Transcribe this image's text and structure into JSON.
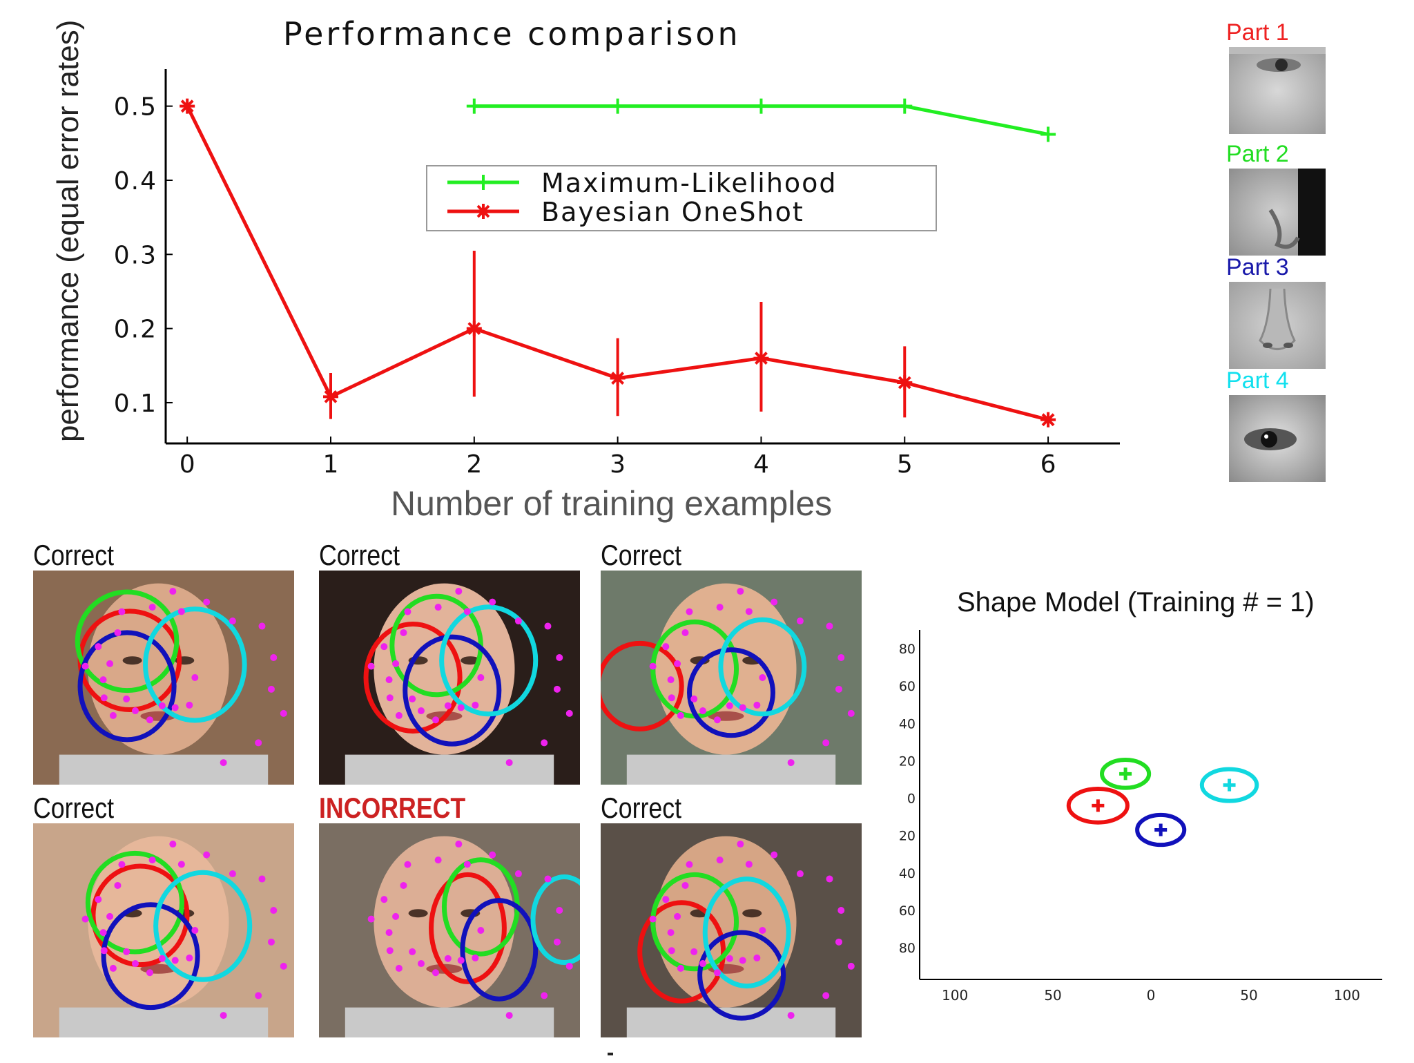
{
  "chart_data": [
    {
      "type": "line",
      "title": "Performance comparison",
      "xlabel": "Number of training examples",
      "ylabel": "performance (equal error rates)",
      "x_ticks": [
        "0",
        "1",
        "2",
        "3",
        "4",
        "5",
        "6"
      ],
      "y_ticks": [
        "0.1",
        "0.2",
        "0.3",
        "0.4",
        "0.5"
      ],
      "xlim": [
        -0.15,
        6.5
      ],
      "ylim": [
        0.045,
        0.55
      ],
      "legend_position": "center",
      "series": [
        {
          "name": "Maximum-Likelihood",
          "color": "#22ee22",
          "marker": "plus",
          "x": [
            2,
            3,
            4,
            5,
            6
          ],
          "values": [
            0.5,
            0.5,
            0.5,
            0.5,
            0.462
          ]
        },
        {
          "name": "Bayesian OneShot",
          "color": "#ee1111",
          "marker": "star",
          "x": [
            0,
            1,
            2,
            3,
            4,
            5,
            6
          ],
          "values": [
            0.5,
            0.108,
            0.2,
            0.133,
            0.16,
            0.127,
            0.077
          ],
          "error_low": [
            0.5,
            0.078,
            0.108,
            0.082,
            0.088,
            0.08,
            0.077
          ],
          "error_high": [
            0.5,
            0.14,
            0.305,
            0.187,
            0.236,
            0.176,
            0.077
          ]
        }
      ]
    },
    {
      "type": "scatter",
      "title": "Shape Model (Training # = 1)",
      "x_ticks": [
        "100",
        "50",
        "0",
        "50",
        "100"
      ],
      "x_tick_values": [
        -100,
        -50,
        0,
        50,
        100
      ],
      "y_ticks": [
        "80",
        "60",
        "40",
        "20",
        "0",
        "20",
        "40",
        "60",
        "80"
      ],
      "y_tick_values": [
        80,
        60,
        40,
        20,
        0,
        -20,
        -40,
        -60,
        -80
      ],
      "xlim": [
        -118,
        118
      ],
      "ylim": [
        -97,
        90
      ],
      "points": [
        {
          "name": "Part 1",
          "color": "#ee1111",
          "x": -27,
          "y": -4,
          "rx": 15,
          "ry": 9
        },
        {
          "name": "Part 2",
          "color": "#22dd22",
          "x": -13,
          "y": 13,
          "rx": 12,
          "ry": 7.5
        },
        {
          "name": "Part 3",
          "color": "#1111bb",
          "x": 5,
          "y": -17,
          "rx": 12,
          "ry": 8
        },
        {
          "name": "Part 4",
          "color": "#11d8e0",
          "x": 40,
          "y": 7,
          "rx": 14,
          "ry": 8.5
        }
      ]
    }
  ],
  "parts": [
    {
      "label": "Part 1",
      "color": "#ee2222",
      "icon": "eye-closeup-icon"
    },
    {
      "label": "Part 2",
      "color": "#22dd22",
      "icon": "face-side-icon"
    },
    {
      "label": "Part 3",
      "color": "#1a1aaa",
      "icon": "nose-closeup-icon"
    },
    {
      "label": "Part 4",
      "color": "#11e0ee",
      "icon": "eye-closeup-icon"
    }
  ],
  "detections": [
    {
      "caption": "Correct",
      "bg": "#8a6a52",
      "face": "#d9a889"
    },
    {
      "caption": "Correct",
      "bg": "#2a1e1a",
      "face": "#e2b39a"
    },
    {
      "caption": "Correct",
      "bg": "#6e7a6a",
      "face": "#e0b090"
    },
    {
      "caption": "Correct",
      "bg": "#c8a58a",
      "face": "#e6b79a"
    },
    {
      "caption": "INCORRECT",
      "bg": "#7a6e62",
      "face": "#dcae95"
    },
    {
      "caption": "Correct",
      "bg": "#5a5048",
      "face": "#d6a585"
    }
  ]
}
